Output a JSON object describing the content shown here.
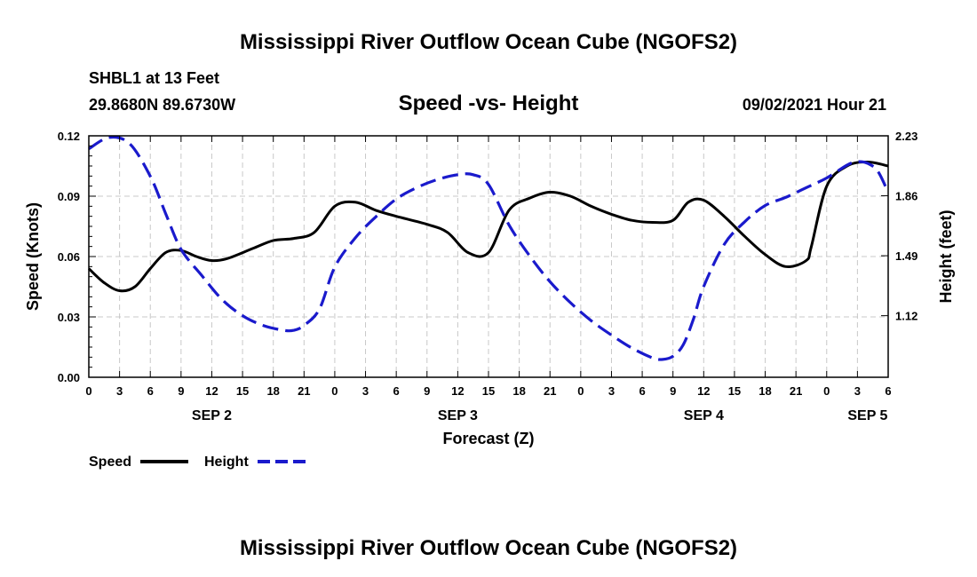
{
  "title_top": "Mississippi River Outflow Ocean Cube (NGOFS2)",
  "title_bottom": "Mississippi River Outflow Ocean Cube (NGOFS2)",
  "station": "SHBL1 at 13 Feet",
  "coords": "29.8680N  89.6730W",
  "plot_title": "Speed -vs- Height",
  "datetime": "09/02/2021 Hour 21",
  "chart_data": {
    "type": "line",
    "xlabel": "Forecast (Z)",
    "ylabel_left": "Speed (Knots)",
    "ylabel_right": "Height (feet)",
    "xlim": [
      0,
      78
    ],
    "ylim_left": [
      0,
      0.12
    ],
    "ylim_right": [
      0.74,
      2.23
    ],
    "x_tick_values": [
      0,
      3,
      6,
      9,
      12,
      15,
      18,
      21,
      24,
      27,
      30,
      33,
      36,
      39,
      42,
      45,
      48,
      51,
      54,
      57,
      60,
      63,
      66,
      69,
      72,
      75,
      78
    ],
    "x_tick_labels": [
      "0",
      "3",
      "6",
      "9",
      "12",
      "15",
      "18",
      "21",
      "0",
      "3",
      "6",
      "9",
      "12",
      "15",
      "18",
      "21",
      "0",
      "3",
      "6",
      "9",
      "12",
      "15",
      "18",
      "21",
      "0",
      "3",
      "6"
    ],
    "y_left_ticks": [
      0.0,
      0.03,
      0.06,
      0.09,
      0.12
    ],
    "y_left_tick_labels": [
      "0.00",
      "0.03",
      "0.06",
      "0.09",
      "0.12"
    ],
    "y_right_ticks": [
      1.12,
      1.49,
      1.86,
      2.23
    ],
    "y_right_tick_labels": [
      "1.12",
      "1.49",
      "1.86",
      "2.23"
    ],
    "day_labels": [
      {
        "x": 12,
        "label": "SEP 2"
      },
      {
        "x": 36,
        "label": "SEP 3"
      },
      {
        "x": 60,
        "label": "SEP 4"
      },
      {
        "x": 76,
        "label": "SEP 5"
      }
    ],
    "grid": true,
    "series": [
      {
        "name": "Speed",
        "axis": "left",
        "color": "#000000",
        "dash": "solid",
        "x": [
          0,
          1.5,
          3,
          4.5,
          6,
          7.5,
          9,
          10.5,
          12,
          13.5,
          16,
          18,
          20,
          22,
          24,
          26,
          28,
          30,
          33,
          35,
          37,
          39,
          41,
          43,
          45,
          47,
          49,
          51,
          53,
          55,
          57,
          58.5,
          60,
          62,
          64,
          66,
          68,
          70,
          70.5,
          72,
          74,
          76,
          78
        ],
        "values": [
          0.054,
          0.047,
          0.043,
          0.045,
          0.054,
          0.062,
          0.063,
          0.06,
          0.058,
          0.059,
          0.064,
          0.068,
          0.069,
          0.072,
          0.085,
          0.087,
          0.083,
          0.08,
          0.076,
          0.072,
          0.062,
          0.062,
          0.083,
          0.089,
          0.092,
          0.09,
          0.085,
          0.081,
          0.078,
          0.077,
          0.078,
          0.087,
          0.088,
          0.08,
          0.07,
          0.061,
          0.055,
          0.058,
          0.065,
          0.095,
          0.105,
          0.107,
          0.105
        ]
      },
      {
        "name": "Height",
        "axis": "right",
        "color": "#1a1acc",
        "dash": "dashed",
        "x": [
          0,
          2,
          4,
          6,
          7.5,
          9,
          11,
          13,
          15,
          17,
          19,
          20,
          21,
          22.5,
          24,
          26,
          28,
          30,
          32,
          34,
          36,
          37.5,
          39,
          41,
          43,
          45,
          47,
          49,
          51,
          53,
          55,
          56,
          57,
          58,
          59,
          60,
          62,
          64,
          66,
          68,
          70,
          72,
          74,
          75,
          76,
          77,
          78
        ],
        "values": [
          2.15,
          2.22,
          2.18,
          1.98,
          1.75,
          1.53,
          1.37,
          1.22,
          1.12,
          1.06,
          1.03,
          1.03,
          1.06,
          1.16,
          1.42,
          1.6,
          1.73,
          1.84,
          1.91,
          1.96,
          1.99,
          1.99,
          1.93,
          1.68,
          1.49,
          1.33,
          1.2,
          1.09,
          1.0,
          0.92,
          0.86,
          0.85,
          0.87,
          0.94,
          1.1,
          1.3,
          1.56,
          1.7,
          1.8,
          1.85,
          1.91,
          1.97,
          2.05,
          2.07,
          2.06,
          2.01,
          1.88
        ]
      }
    ],
    "legend": [
      {
        "label": "Speed",
        "series": "Speed"
      },
      {
        "label": "Height",
        "series": "Height"
      }
    ],
    "legend_position": "bottom-left"
  }
}
